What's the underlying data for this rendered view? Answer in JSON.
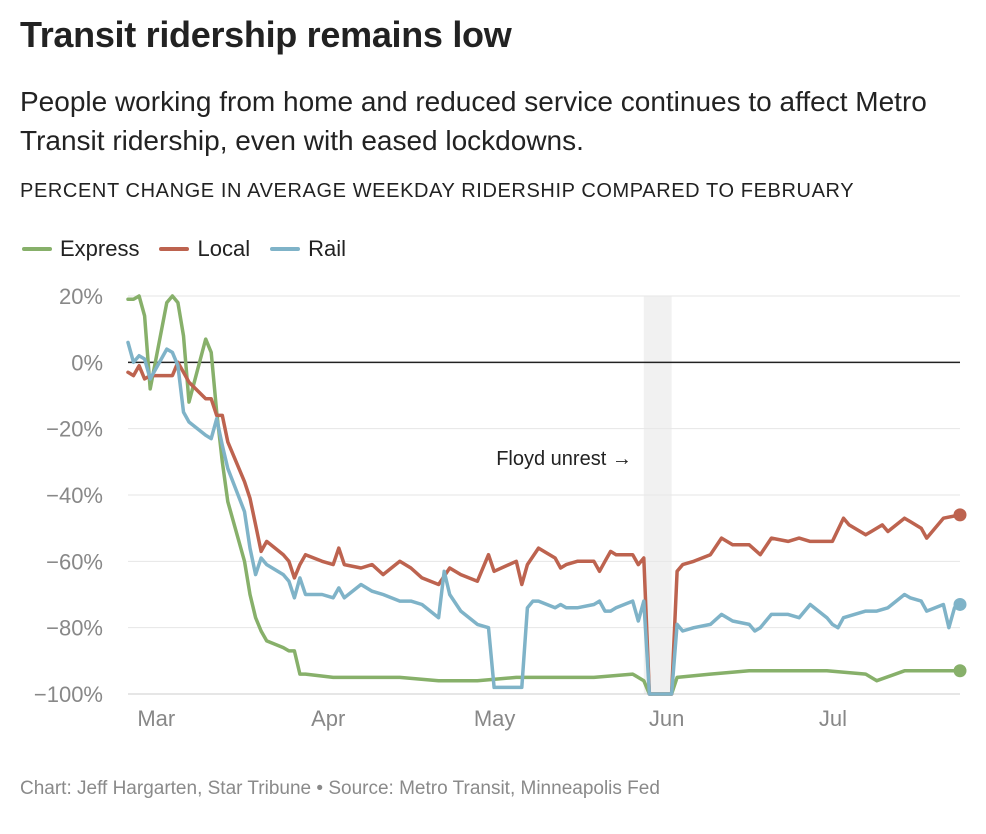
{
  "title": "Transit ridership remains low",
  "subtitle": "People working from home and reduced service continues to affect Metro Transit ridership, even with eased lockdowns.",
  "measure_label": "PERCENT CHANGE IN AVERAGE WEEKDAY RIDERSHIP COMPARED TO FEBRUARY",
  "footer": "Chart: Jeff Hargarten, Star Tribune • Source: Metro Transit, Minneapolis Fed",
  "chart_data": {
    "type": "line",
    "x_axis": {
      "start_date": "2020-02-24",
      "end_date": "2020-07-23",
      "tick_labels": [
        "Mar",
        "Apr",
        "May",
        "Jun",
        "Jul"
      ],
      "tick_dates": [
        "2020-03-01",
        "2020-04-01",
        "2020-05-01",
        "2020-06-01",
        "2020-07-01"
      ]
    },
    "y_axis": {
      "ylim": [
        -100,
        20
      ],
      "ticks": [
        20,
        0,
        -20,
        -40,
        -60,
        -80,
        -100
      ],
      "tick_labels": [
        "20%",
        "0%",
        "−20%",
        "−40%",
        "−60%",
        "−80%",
        "−100%"
      ]
    },
    "grid": true,
    "zero_line": true,
    "legend_placement": "top-left",
    "annotation": {
      "text": "Floyd unrest →",
      "band_start": "2020-05-27",
      "band_end": "2020-06-01"
    },
    "series": [
      {
        "name": "Express",
        "color": "#87b06a",
        "points": [
          [
            "2020-02-24",
            19
          ],
          [
            "2020-02-25",
            19
          ],
          [
            "2020-02-26",
            20
          ],
          [
            "2020-02-27",
            14
          ],
          [
            "2020-02-28",
            -8
          ],
          [
            "2020-03-02",
            18
          ],
          [
            "2020-03-03",
            20
          ],
          [
            "2020-03-04",
            18
          ],
          [
            "2020-03-05",
            8
          ],
          [
            "2020-03-06",
            -12
          ],
          [
            "2020-03-09",
            7
          ],
          [
            "2020-03-10",
            3
          ],
          [
            "2020-03-11",
            -15
          ],
          [
            "2020-03-12",
            -30
          ],
          [
            "2020-03-13",
            -42
          ],
          [
            "2020-03-16",
            -60
          ],
          [
            "2020-03-17",
            -70
          ],
          [
            "2020-03-18",
            -77
          ],
          [
            "2020-03-19",
            -81
          ],
          [
            "2020-03-20",
            -84
          ],
          [
            "2020-03-23",
            -86
          ],
          [
            "2020-03-24",
            -87
          ],
          [
            "2020-03-25",
            -87
          ],
          [
            "2020-03-26",
            -94
          ],
          [
            "2020-03-27",
            -94
          ],
          [
            "2020-04-01",
            -95
          ],
          [
            "2020-04-06",
            -95
          ],
          [
            "2020-04-13",
            -95
          ],
          [
            "2020-04-20",
            -96
          ],
          [
            "2020-04-27",
            -96
          ],
          [
            "2020-05-04",
            -95
          ],
          [
            "2020-05-11",
            -95
          ],
          [
            "2020-05-18",
            -95
          ],
          [
            "2020-05-25",
            -94
          ],
          [
            "2020-05-27",
            -96
          ],
          [
            "2020-05-28",
            -100
          ],
          [
            "2020-05-29",
            -100
          ],
          [
            "2020-06-01",
            -100
          ],
          [
            "2020-06-02",
            -95
          ],
          [
            "2020-06-08",
            -94
          ],
          [
            "2020-06-15",
            -93
          ],
          [
            "2020-06-22",
            -93
          ],
          [
            "2020-06-29",
            -93
          ],
          [
            "2020-07-06",
            -94
          ],
          [
            "2020-07-08",
            -96
          ],
          [
            "2020-07-13",
            -93
          ],
          [
            "2020-07-20",
            -93
          ],
          [
            "2020-07-23",
            -93
          ]
        ]
      },
      {
        "name": "Local",
        "color": "#bd634f",
        "points": [
          [
            "2020-02-24",
            -3
          ],
          [
            "2020-02-25",
            -4
          ],
          [
            "2020-02-26",
            -1
          ],
          [
            "2020-02-27",
            -5
          ],
          [
            "2020-02-28",
            -4
          ],
          [
            "2020-03-02",
            -4
          ],
          [
            "2020-03-03",
            -4
          ],
          [
            "2020-03-04",
            0
          ],
          [
            "2020-03-05",
            -3
          ],
          [
            "2020-03-06",
            -6
          ],
          [
            "2020-03-09",
            -11
          ],
          [
            "2020-03-10",
            -11
          ],
          [
            "2020-03-11",
            -16
          ],
          [
            "2020-03-12",
            -16
          ],
          [
            "2020-03-13",
            -24
          ],
          [
            "2020-03-16",
            -36
          ],
          [
            "2020-03-17",
            -41
          ],
          [
            "2020-03-18",
            -49
          ],
          [
            "2020-03-19",
            -57
          ],
          [
            "2020-03-20",
            -54
          ],
          [
            "2020-03-23",
            -58
          ],
          [
            "2020-03-24",
            -60
          ],
          [
            "2020-03-25",
            -65
          ],
          [
            "2020-03-26",
            -61
          ],
          [
            "2020-03-27",
            -58
          ],
          [
            "2020-03-30",
            -60
          ],
          [
            "2020-04-01",
            -61
          ],
          [
            "2020-04-02",
            -56
          ],
          [
            "2020-04-03",
            -61
          ],
          [
            "2020-04-06",
            -62
          ],
          [
            "2020-04-08",
            -61
          ],
          [
            "2020-04-10",
            -64
          ],
          [
            "2020-04-13",
            -60
          ],
          [
            "2020-04-15",
            -62
          ],
          [
            "2020-04-17",
            -65
          ],
          [
            "2020-04-20",
            -67
          ],
          [
            "2020-04-22",
            -62
          ],
          [
            "2020-04-24",
            -64
          ],
          [
            "2020-04-27",
            -66
          ],
          [
            "2020-04-29",
            -58
          ],
          [
            "2020-04-30",
            -63
          ],
          [
            "2020-05-04",
            -60
          ],
          [
            "2020-05-05",
            -67
          ],
          [
            "2020-05-06",
            -61
          ],
          [
            "2020-05-08",
            -56
          ],
          [
            "2020-05-11",
            -59
          ],
          [
            "2020-05-12",
            -62
          ],
          [
            "2020-05-13",
            -61
          ],
          [
            "2020-05-15",
            -60
          ],
          [
            "2020-05-18",
            -60
          ],
          [
            "2020-05-19",
            -63
          ],
          [
            "2020-05-20",
            -60
          ],
          [
            "2020-05-21",
            -57
          ],
          [
            "2020-05-22",
            -58
          ],
          [
            "2020-05-25",
            -58
          ],
          [
            "2020-05-26",
            -61
          ],
          [
            "2020-05-27",
            -59
          ],
          [
            "2020-05-28",
            -100
          ],
          [
            "2020-05-29",
            -100
          ],
          [
            "2020-06-01",
            -100
          ],
          [
            "2020-06-02",
            -63
          ],
          [
            "2020-06-03",
            -61
          ],
          [
            "2020-06-05",
            -60
          ],
          [
            "2020-06-08",
            -58
          ],
          [
            "2020-06-10",
            -53
          ],
          [
            "2020-06-12",
            -55
          ],
          [
            "2020-06-15",
            -55
          ],
          [
            "2020-06-17",
            -58
          ],
          [
            "2020-06-19",
            -53
          ],
          [
            "2020-06-22",
            -54
          ],
          [
            "2020-06-24",
            -53
          ],
          [
            "2020-06-26",
            -54
          ],
          [
            "2020-06-29",
            -54
          ],
          [
            "2020-06-30",
            -54
          ],
          [
            "2020-07-02",
            -47
          ],
          [
            "2020-07-03",
            -49
          ],
          [
            "2020-07-06",
            -52
          ],
          [
            "2020-07-07",
            -51
          ],
          [
            "2020-07-09",
            -49
          ],
          [
            "2020-07-10",
            -51
          ],
          [
            "2020-07-13",
            -47
          ],
          [
            "2020-07-14",
            -48
          ],
          [
            "2020-07-16",
            -50
          ],
          [
            "2020-07-17",
            -53
          ],
          [
            "2020-07-20",
            -47
          ],
          [
            "2020-07-23",
            -46
          ]
        ]
      },
      {
        "name": "Rail",
        "color": "#7fb3c8",
        "points": [
          [
            "2020-02-24",
            6
          ],
          [
            "2020-02-25",
            0
          ],
          [
            "2020-02-26",
            2
          ],
          [
            "2020-02-27",
            1
          ],
          [
            "2020-02-28",
            -5
          ],
          [
            "2020-03-02",
            4
          ],
          [
            "2020-03-03",
            3
          ],
          [
            "2020-03-04",
            -1
          ],
          [
            "2020-03-05",
            -15
          ],
          [
            "2020-03-06",
            -18
          ],
          [
            "2020-03-09",
            -22
          ],
          [
            "2020-03-10",
            -23
          ],
          [
            "2020-03-11",
            -17
          ],
          [
            "2020-03-12",
            -25
          ],
          [
            "2020-03-13",
            -32
          ],
          [
            "2020-03-16",
            -45
          ],
          [
            "2020-03-17",
            -56
          ],
          [
            "2020-03-18",
            -64
          ],
          [
            "2020-03-19",
            -59
          ],
          [
            "2020-03-20",
            -61
          ],
          [
            "2020-03-23",
            -64
          ],
          [
            "2020-03-24",
            -66
          ],
          [
            "2020-03-25",
            -71
          ],
          [
            "2020-03-26",
            -65
          ],
          [
            "2020-03-27",
            -70
          ],
          [
            "2020-03-30",
            -70
          ],
          [
            "2020-04-01",
            -71
          ],
          [
            "2020-04-02",
            -68
          ],
          [
            "2020-04-03",
            -71
          ],
          [
            "2020-04-06",
            -67
          ],
          [
            "2020-04-08",
            -69
          ],
          [
            "2020-04-10",
            -70
          ],
          [
            "2020-04-13",
            -72
          ],
          [
            "2020-04-15",
            -72
          ],
          [
            "2020-04-17",
            -73
          ],
          [
            "2020-04-20",
            -77
          ],
          [
            "2020-04-21",
            -63
          ],
          [
            "2020-04-22",
            -70
          ],
          [
            "2020-04-24",
            -75
          ],
          [
            "2020-04-27",
            -79
          ],
          [
            "2020-04-29",
            -80
          ],
          [
            "2020-04-30",
            -98
          ],
          [
            "2020-05-01",
            -98
          ],
          [
            "2020-05-04",
            -98
          ],
          [
            "2020-05-05",
            -98
          ],
          [
            "2020-05-06",
            -74
          ],
          [
            "2020-05-07",
            -72
          ],
          [
            "2020-05-08",
            -72
          ],
          [
            "2020-05-11",
            -74
          ],
          [
            "2020-05-12",
            -73
          ],
          [
            "2020-05-13",
            -74
          ],
          [
            "2020-05-15",
            -74
          ],
          [
            "2020-05-18",
            -73
          ],
          [
            "2020-05-19",
            -72
          ],
          [
            "2020-05-20",
            -75
          ],
          [
            "2020-05-21",
            -75
          ],
          [
            "2020-05-22",
            -74
          ],
          [
            "2020-05-25",
            -72
          ],
          [
            "2020-05-26",
            -78
          ],
          [
            "2020-05-27",
            -72
          ],
          [
            "2020-05-28",
            -100
          ],
          [
            "2020-05-29",
            -100
          ],
          [
            "2020-06-01",
            -100
          ],
          [
            "2020-06-02",
            -79
          ],
          [
            "2020-06-03",
            -81
          ],
          [
            "2020-06-05",
            -80
          ],
          [
            "2020-06-08",
            -79
          ],
          [
            "2020-06-10",
            -76
          ],
          [
            "2020-06-12",
            -78
          ],
          [
            "2020-06-15",
            -79
          ],
          [
            "2020-06-16",
            -81
          ],
          [
            "2020-06-17",
            -80
          ],
          [
            "2020-06-19",
            -76
          ],
          [
            "2020-06-22",
            -76
          ],
          [
            "2020-06-24",
            -77
          ],
          [
            "2020-06-26",
            -73
          ],
          [
            "2020-06-29",
            -77
          ],
          [
            "2020-06-30",
            -79
          ],
          [
            "2020-07-01",
            -80
          ],
          [
            "2020-07-02",
            -77
          ],
          [
            "2020-07-06",
            -75
          ],
          [
            "2020-07-08",
            -75
          ],
          [
            "2020-07-10",
            -74
          ],
          [
            "2020-07-13",
            -70
          ],
          [
            "2020-07-14",
            -71
          ],
          [
            "2020-07-16",
            -72
          ],
          [
            "2020-07-17",
            -75
          ],
          [
            "2020-07-20",
            -73
          ],
          [
            "2020-07-21",
            -80
          ],
          [
            "2020-07-22",
            -74
          ],
          [
            "2020-07-23",
            -73
          ]
        ]
      }
    ]
  }
}
